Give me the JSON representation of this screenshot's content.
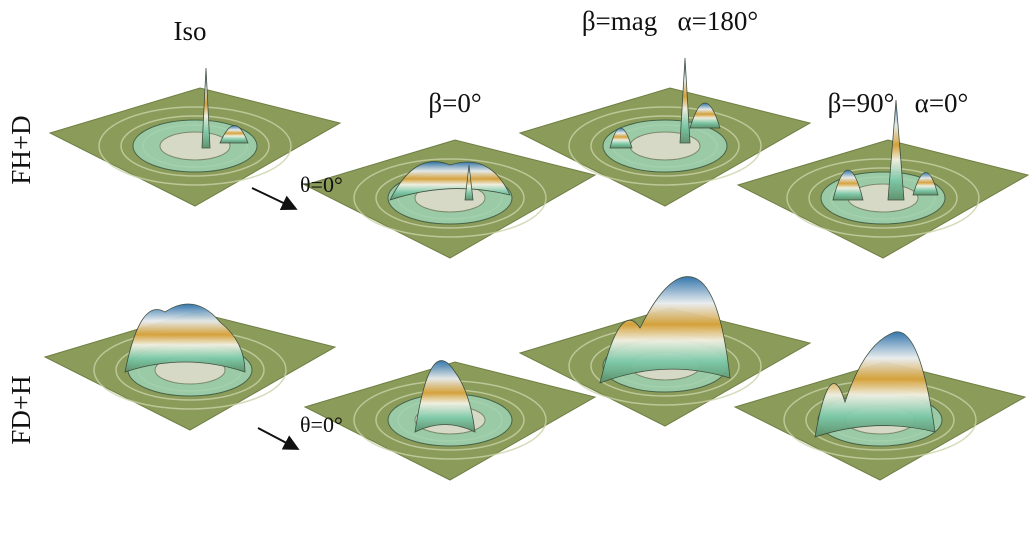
{
  "columns": [
    "Iso",
    "β=0°",
    "β=mag   α=180°",
    "β=90°   α=0°"
  ],
  "rows": [
    "FH+D",
    "FD+H"
  ],
  "annotations": [
    "θ=0°",
    "θ=0°"
  ]
}
